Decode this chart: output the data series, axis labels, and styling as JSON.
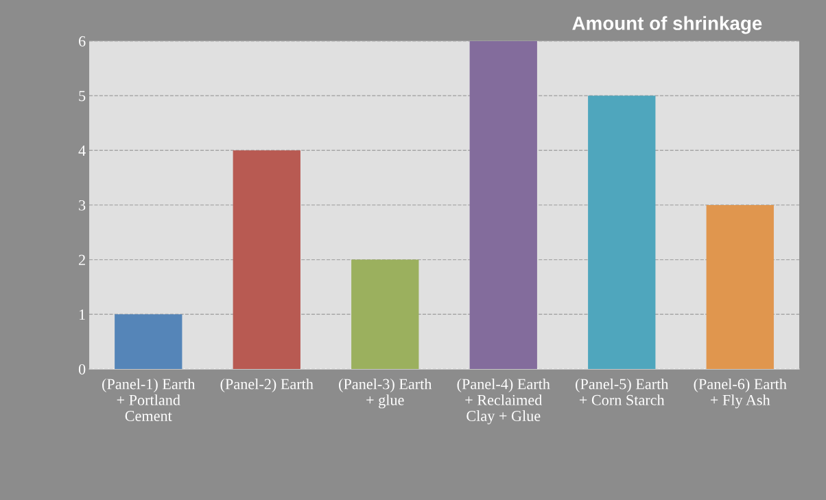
{
  "chart_data": {
    "type": "bar",
    "title": "Amount of shrinkage",
    "categories": [
      "(Panel-1) Earth\n+ Portland\nCement",
      "(Panel-2) Earth",
      "(Panel-3) Earth\n+ glue",
      "(Panel-4) Earth\n+ Reclaimed\nClay + Glue",
      "(Panel-5) Earth\n+ Corn Starch",
      "(Panel-6) Earth\n+ Fly Ash"
    ],
    "values": [
      1,
      4,
      2,
      6,
      5,
      3
    ],
    "colors": [
      "#5585b8",
      "#b85a52",
      "#9bb05e",
      "#836c9c",
      "#4fa6bd",
      "#e0964e"
    ],
    "ylim": [
      0,
      6
    ],
    "yticks": [
      0,
      1,
      2,
      3,
      4,
      5,
      6
    ],
    "grid": "y",
    "legend": false
  }
}
